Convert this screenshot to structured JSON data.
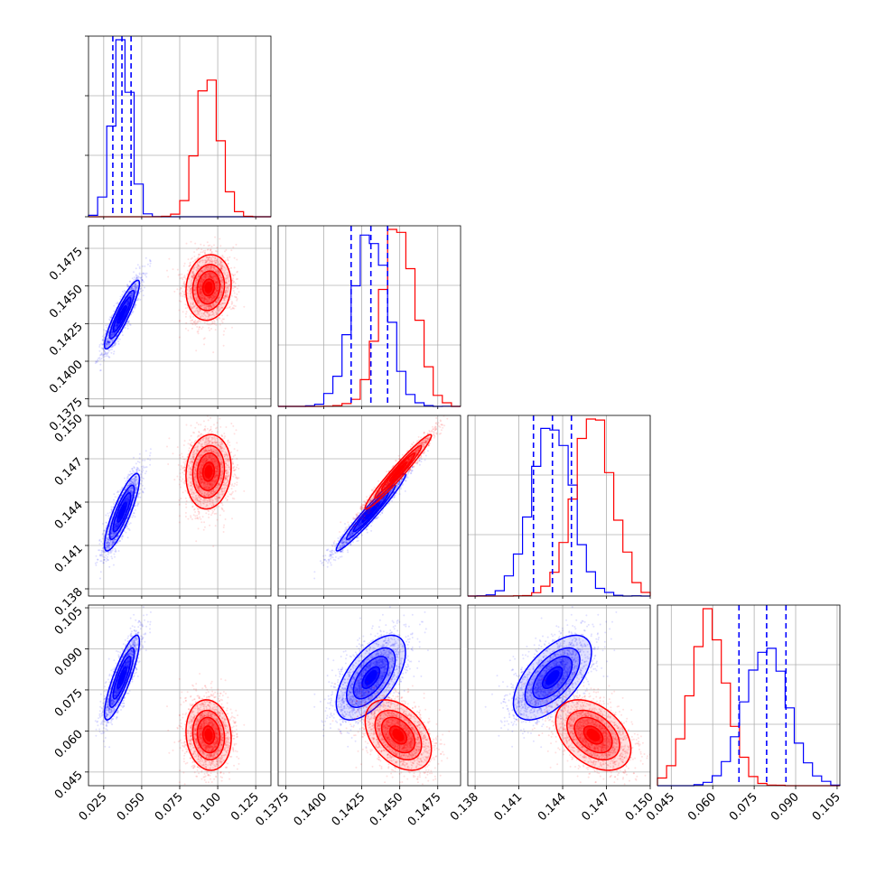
{
  "chart_data": {
    "type": "scatter",
    "plot_kind": "corner plot (pairwise 2D histograms with contours, 1D marginal histograms)",
    "grid": true,
    "parameters": [
      {
        "ticks": [
          0.025,
          0.05,
          0.075,
          0.1,
          0.125
        ],
        "tick_labels": [
          "0.025",
          "0.050",
          "0.075",
          "0.100",
          "0.125"
        ],
        "range": [
          0.015,
          0.135
        ]
      },
      {
        "ticks": [
          0.1375,
          0.14,
          0.1425,
          0.145,
          0.1475
        ],
        "tick_labels": [
          "0.1375",
          "0.1400",
          "0.1425",
          "0.1450",
          "0.1475"
        ],
        "range": [
          0.137,
          0.149
        ]
      },
      {
        "ticks": [
          0.138,
          0.141,
          0.144,
          0.147,
          0.15
        ],
        "tick_labels": [
          "0.138",
          "0.141",
          "0.144",
          "0.147",
          "0.150"
        ],
        "range": [
          0.1375,
          0.15
        ]
      },
      {
        "ticks": [
          0.045,
          0.06,
          0.075,
          0.09,
          0.105
        ],
        "tick_labels": [
          "0.045",
          "0.060",
          "0.075",
          "0.090",
          "0.105"
        ],
        "range": [
          0.04,
          0.106
        ]
      }
    ],
    "series": [
      {
        "color": "#0000ff",
        "mean": [
          0.037,
          0.1431,
          0.1433,
          0.0795
        ],
        "std": [
          0.0058,
          0.00115,
          0.00135,
          0.0078
        ],
        "corr": [
          [
            1,
            0.9,
            0.85,
            0.85
          ],
          [
            0.9,
            1,
            0.97,
            0.6
          ],
          [
            0.85,
            0.97,
            1,
            0.6
          ],
          [
            0.85,
            0.6,
            0.6,
            1
          ]
        ],
        "quantiles": [
          [
            0.031,
            0.037,
            0.043
          ],
          [
            0.1418,
            0.1431,
            0.1442
          ],
          [
            0.142,
            0.1433,
            0.1446
          ],
          [
            0.0695,
            0.0795,
            0.0865
          ]
        ]
      },
      {
        "color": "#ff0000",
        "mean": [
          0.094,
          0.1449,
          0.1461,
          0.0585
        ],
        "std": [
          0.0075,
          0.0011,
          0.0013,
          0.0065
        ],
        "corr": [
          [
            1,
            0.1,
            0.1,
            -0.1
          ],
          [
            0.1,
            1,
            0.97,
            -0.4
          ],
          [
            0.1,
            0.97,
            1,
            -0.4
          ],
          [
            -0.1,
            -0.4,
            -0.4,
            1
          ]
        ],
        "quantiles": []
      }
    ],
    "marginal_histograms": {
      "bins": 20,
      "blue_quantile_lines": "dashed vertical lines at 16th, 50th, 84th percentiles"
    }
  }
}
